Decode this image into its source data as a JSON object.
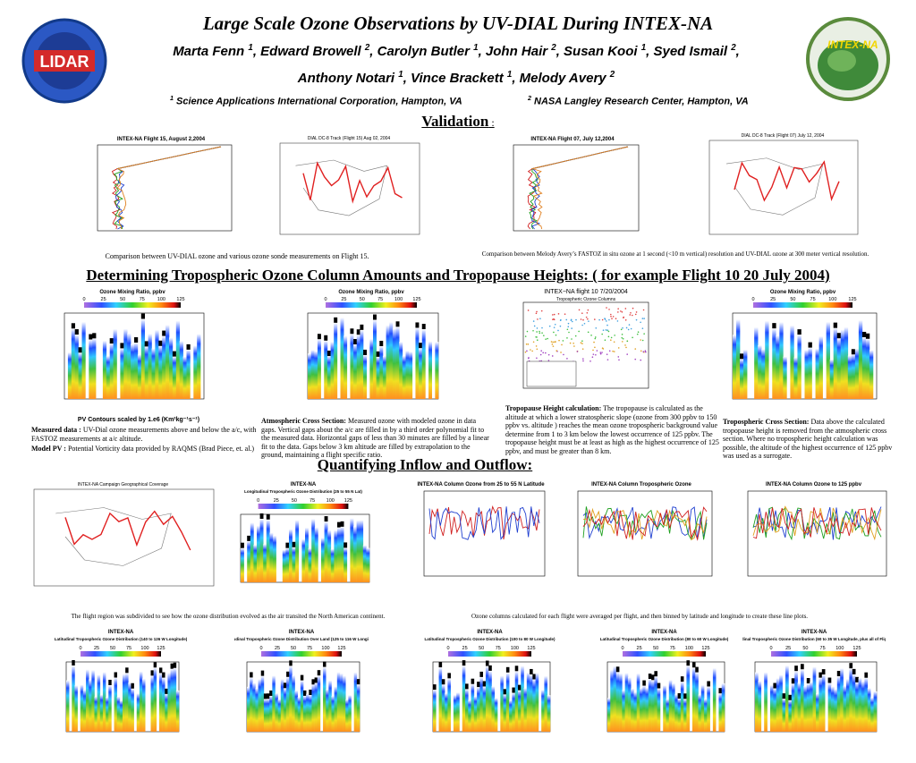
{
  "header": {
    "title": "Large Scale Ozone Observations by UV-DIAL During INTEX-NA",
    "authors_line1": [
      {
        "text": "Marta Fenn ",
        "sup": "1"
      },
      {
        "text": ",  Edward Browell ",
        "sup": "2"
      },
      {
        "text": ", Carolyn Butler ",
        "sup": "1"
      },
      {
        "text": ", John Hair ",
        "sup": "2"
      },
      {
        "text": ", Susan Kooi ",
        "sup": "1"
      },
      {
        "text": ", Syed Ismail ",
        "sup": "2"
      },
      {
        "text": ",",
        "sup": ""
      }
    ],
    "authors_line2": [
      {
        "text": "Anthony Notari ",
        "sup": "1"
      },
      {
        "text": ", Vince Brackett ",
        "sup": "1"
      },
      {
        "text": ",  Melody Avery ",
        "sup": "2"
      }
    ],
    "affiliation1": {
      "sup": "1",
      "text": " Science Applications International Corporation, Hampton, VA"
    },
    "affiliation2": {
      "sup": "2",
      "text": " NASA Langley Research Center, Hampton, VA"
    },
    "logo_left": "LIDAR",
    "logo_right": "INTEX-NA"
  },
  "validation": {
    "heading": "Validation",
    "colon": " :",
    "figures": [
      {
        "title": "INTEX-NA Flight 15, August 2,2004"
      },
      {
        "title": "DIAL DC-8 Track (Flight 15) Aug 02, 2004"
      },
      {
        "title": "INTEX-NA Flight 07, July 12,2004"
      },
      {
        "title": "DIAL DC-8 Track (Flight 07) July 12, 2004"
      }
    ],
    "captions": [
      "Comparison between UV-DIAL ozone and various ozone sonde measurements on Flight 15.",
      "Comparison between Melody Avery’s FASTOZ in situ ozone at 1 second (<10 m vertical) resolution and UV-DIAL ozone at 300 meter vertical resolution."
    ]
  },
  "columns": {
    "heading": "Determining Tropospheric Ozone Column Amounts and Tropopause Heights:",
    "heading_note": "  ( for example Flight 10  20 July 2004)",
    "colorbar_title": "Ozone Mixing Ratio, ppbv",
    "colorbar_ticks": [
      0,
      25,
      50,
      75,
      100,
      125
    ],
    "column_plot_title": "INTEX−NA   flight 10   7/20/2004",
    "column_plot_subtitle": "Tropospheric Ozone Columns",
    "pv_caption": "PV Contours scaled by 1.e6 (Km²kg⁻¹s⁻¹)",
    "measured": {
      "label": "Measured data :",
      "text": " UV-Dial ozone measurements above and below the a/c, with FASTOZ measurements at a/c altitude."
    },
    "model": {
      "label": "Model PV :",
      "text": " Potential Vorticity data provided by RAQMS (Brad Piece, et. al.)"
    },
    "cross_section": {
      "label": "Atmospheric Cross Section:",
      "text": "  Measured ozone with modeled ozone in data gaps. Vertical gaps about the a/c are filled in by a third order polynomial fit to the measured data.  Horizontal gaps of less than 30 minutes are filled by a linear fit to the data.  Gaps below 3 km altitude are filled by extrapolation to the ground, maintaining a flight specific ratio."
    },
    "tropopause": {
      "label": "Tropopause Height calculation:",
      "text": "  The tropopause is calculated as the altitude at which a lower stratospheric slope (ozone from 300 ppbv to 150 ppbv vs. altitude ) reaches the mean ozone tropospheric background value determine from 1 to 3 km below the lowest occurrence of 125 ppbv.  The tropopause height must be at least as high as the highest occurrence of 125 ppbv,  and must be greater than 8 km."
    },
    "tropospheric": {
      "label": "Tropospheric Cross Section:",
      "text": "  Data above the calculated tropopause height is removed from the atmospheric cross section. Where no tropospheric height calculation was possible, the altitude of the highest occurrence of 125 ppbv was used as a surrogate."
    }
  },
  "inflow": {
    "heading": "Quantifying Inflow and Outflow:",
    "average_label": "Average Ozone (ppbv)",
    "figures": [
      {
        "title": "INTEX-NA Campaign Geographical Coverage"
      },
      {
        "title": "INTEX-NA",
        "subtitle": "Longitudinal Tropospheric Ozone Distribution (25 to 55 N Lat)"
      },
      {
        "title": "INTEX-NA Column Ozone from 25 to 55 N Latitude"
      },
      {
        "title": "INTEX-NA Column Tropospheric Ozone"
      },
      {
        "title": "INTEX-NA Column Ozone to 125 ppbv"
      }
    ],
    "captions": [
      "The flight region was subdivided to see how the ozone distribution evolved as the air transited the North American continent.",
      "Ozone columns calculated for each flight were averaged per flight, and then binned by latitude and longitude to create these line plots."
    ],
    "latitudinal": [
      {
        "title": "INTEX-NA",
        "subtitle": "Latitudinal Tropospheric Ozone Distribution (140 to 126 W Longitude)"
      },
      {
        "title": "INTEX-NA",
        "subtitle": "Latitudinal Tropospheric Ozone Distribution Over Land (125 to 116 W Longitude)"
      },
      {
        "title": "INTEX-NA",
        "subtitle": "Latitudinal Tropospheric Ozone Distribution (100 to 80 W Longitude)"
      },
      {
        "title": "INTEX-NA",
        "subtitle": "Latitudinal Tropospheric Ozone Distribution (80 to 60 W Longitude)"
      },
      {
        "title": "INTEX-NA",
        "subtitle": "Latitudinal Tropospheric Ozone Distribution (60 to 35 W Longitude, plus all of Flight 13)"
      }
    ]
  }
}
